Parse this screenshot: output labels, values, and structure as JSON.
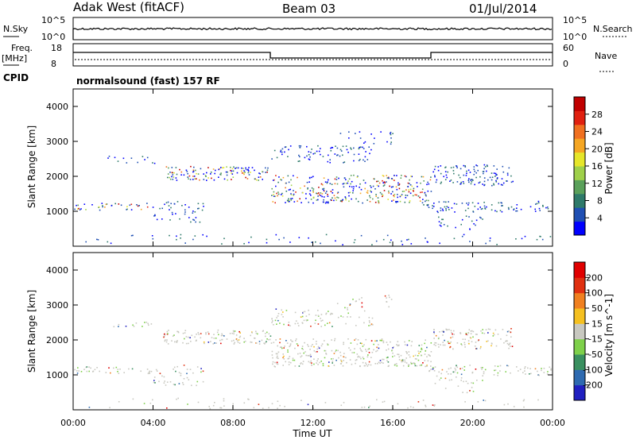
{
  "header": {
    "station": "Adak West (fitACF)",
    "beam": "Beam 03",
    "date": "01/Jul/2014"
  },
  "panels": {
    "noise": {
      "left_label": "N.Sky",
      "right_label": "N.Search",
      "left_ticks": [
        "10^5",
        "10^0"
      ],
      "right_ticks": [
        "10^5",
        "10^0"
      ]
    },
    "freq": {
      "left_label_line1": "Freq.",
      "left_label_line2": "[MHz]",
      "right_label": "Nave",
      "left_ticks": [
        "18",
        "8"
      ],
      "right_ticks": [
        "60",
        "0"
      ]
    },
    "cpid": {
      "label": "CPID",
      "text": "normalsound (fast) 157 RF"
    }
  },
  "chart_data": [
    {
      "type": "scatter",
      "title": "",
      "ylabel": "Slant Range [km]",
      "xlabel": "",
      "ylim": [
        0,
        4500
      ],
      "yticks": [
        "4000",
        "3000",
        "2000",
        "1000"
      ],
      "colorbar": {
        "label": "Power [dB]",
        "ticks": [
          "28",
          "24",
          "20",
          "16",
          "12",
          "8",
          "4"
        ],
        "colors": [
          "#0000ff",
          "#1f4fb3",
          "#2e7a6a",
          "#5aa05a",
          "#9fd04a",
          "#e6e62a",
          "#f5a623",
          "#f07020",
          "#e02010",
          "#c00000"
        ]
      }
    },
    {
      "type": "scatter",
      "title": "",
      "ylabel": "Slant Range [km]",
      "xlabel": "Time UT",
      "ylim": [
        0,
        4500
      ],
      "yticks": [
        "4000",
        "3000",
        "2000",
        "1000"
      ],
      "xticks": [
        "00:00",
        "04:00",
        "08:00",
        "12:00",
        "16:00",
        "20:00",
        "00:00"
      ],
      "colorbar": {
        "label": "Velocity [m s^-1]",
        "ticks": [
          "200",
          "100",
          "50",
          "15",
          "-15",
          "-50",
          "-100",
          "-200"
        ],
        "colors": [
          "#2020c0",
          "#2e6ab0",
          "#3a9060",
          "#7ed04a",
          "#c8c8c0",
          "#f5c020",
          "#f08020",
          "#e03010",
          "#e00000"
        ]
      }
    }
  ]
}
